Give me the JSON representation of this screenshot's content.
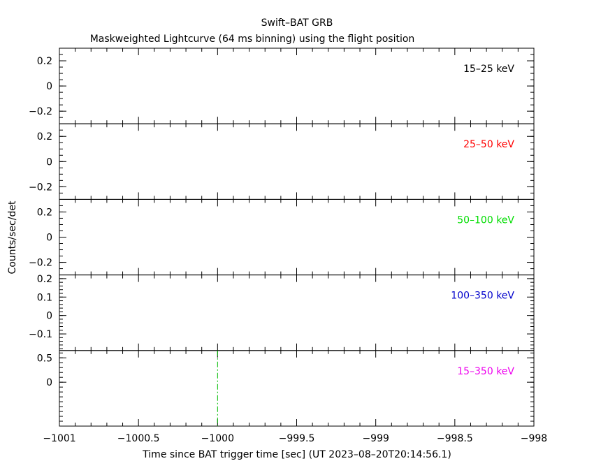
{
  "chart_data": {
    "type": "line",
    "title": "Swift–BAT GRB",
    "subtitle": "Maskweighted Lightcurve (64 ms binning) using the flight position",
    "xlabel": "Time since BAT trigger time [sec] (UT 2023–08–20T20:14:56.1)",
    "ylabel": "Counts/sec/det",
    "xlim": [
      -1001,
      -998
    ],
    "x_ticks": [
      -1001,
      -1000.5,
      -1000,
      -999.5,
      -999,
      -998.5,
      -998
    ],
    "x_tick_labels": [
      "−1001",
      "−1000.5",
      "−1000",
      "−999.5",
      "−999",
      "−998.5",
      "−998"
    ],
    "panels": [
      {
        "label": "15–25 keV",
        "color": "#000000",
        "ylim": [
          -0.3,
          0.3
        ],
        "y_ticks": [
          0.2,
          0,
          -0.2
        ],
        "y_tick_labels": [
          "0.2",
          "0",
          "−0.2"
        ],
        "minor_step": 0.05
      },
      {
        "label": "25–50 keV",
        "color": "#ff0000",
        "ylim": [
          -0.3,
          0.3
        ],
        "y_ticks": [
          0.2,
          0,
          -0.2
        ],
        "y_tick_labels": [
          "0.2",
          "0",
          "−0.2"
        ],
        "minor_step": 0.05
      },
      {
        "label": "50–100 keV",
        "color": "#00dd00",
        "ylim": [
          -0.3,
          0.3
        ],
        "y_ticks": [
          0.2,
          0,
          -0.2
        ],
        "y_tick_labels": [
          "0.2",
          "0",
          "−0.2"
        ],
        "minor_step": 0.05
      },
      {
        "label": "100–350 keV",
        "color": "#0000cc",
        "ylim": [
          -0.19,
          0.22
        ],
        "y_ticks": [
          0.2,
          0.1,
          0,
          -0.1
        ],
        "y_tick_labels": [
          "0.2",
          "0.1",
          "0",
          "−0.1"
        ],
        "minor_step": 0.02
      },
      {
        "label": "15–350 keV",
        "color": "#ee00ee",
        "ylim": [
          -0.9,
          0.65
        ],
        "y_ticks": [
          0.5,
          0
        ],
        "y_tick_labels": [
          "0.5",
          "0"
        ],
        "minor_step": 0.1
      }
    ],
    "markers": [
      {
        "panel": 4,
        "x": -1000,
        "color": "#00bb00",
        "style": "dash-dot"
      }
    ],
    "series": []
  }
}
